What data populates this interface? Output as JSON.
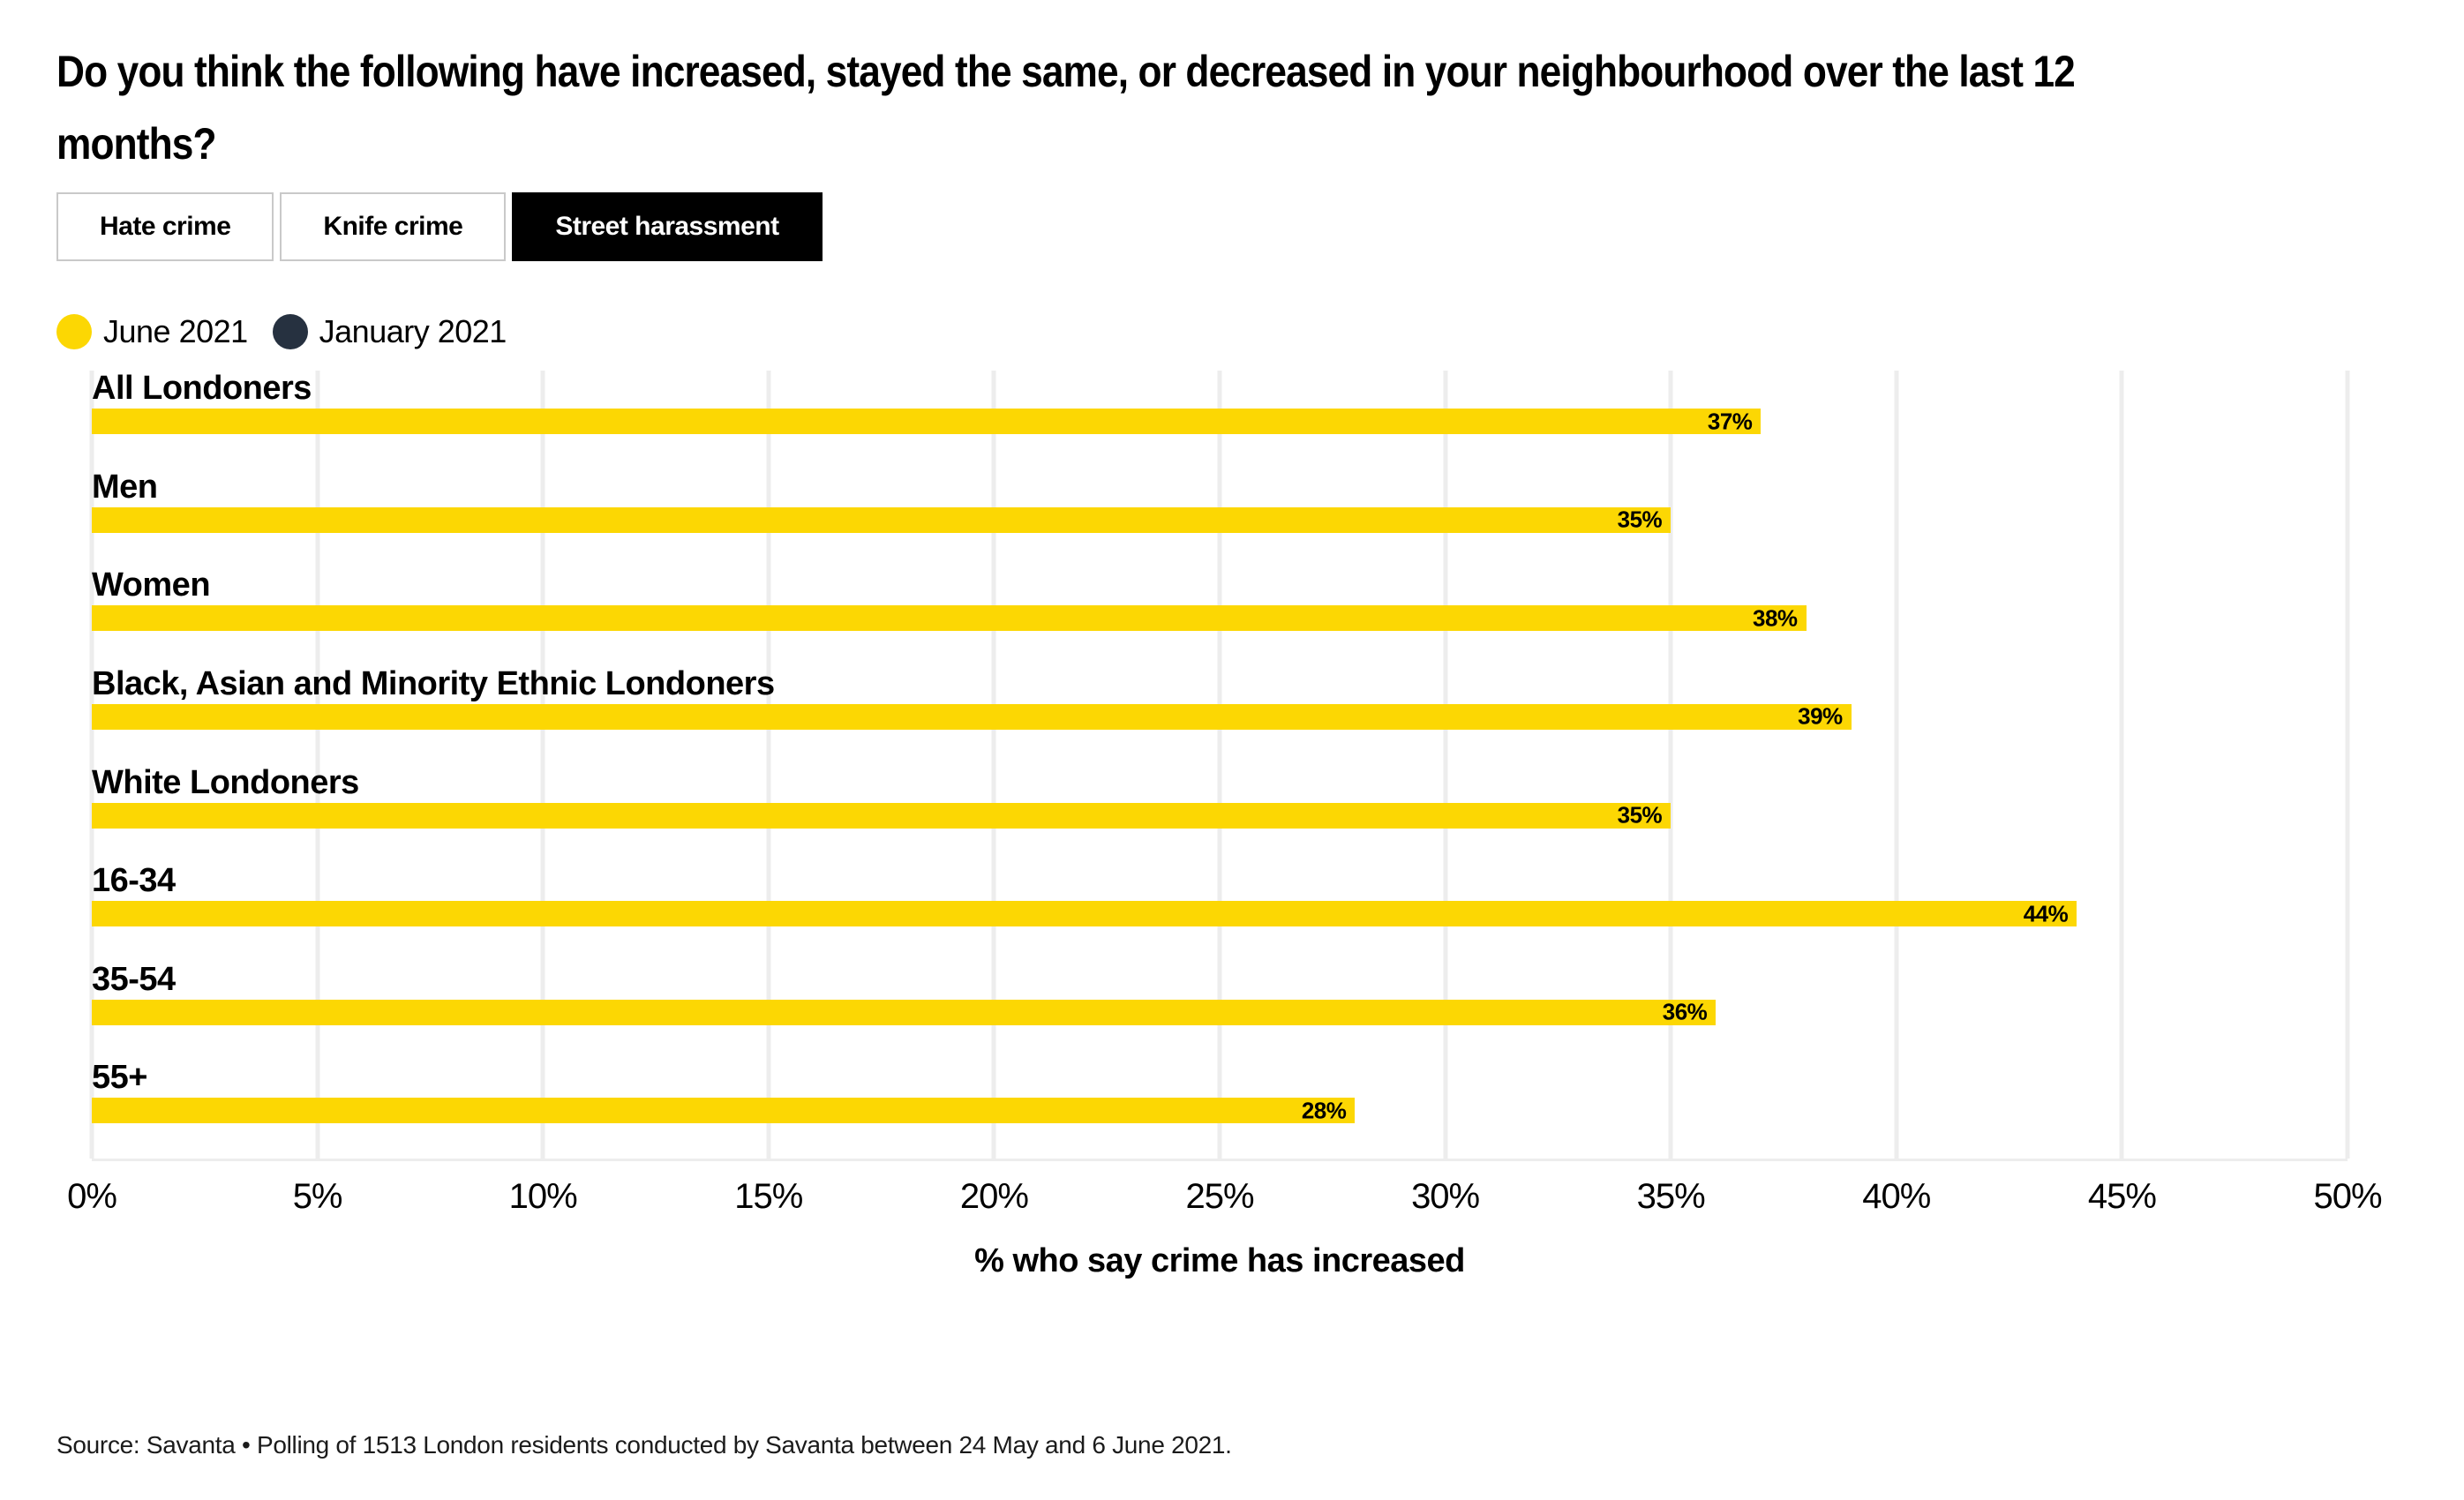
{
  "title": "Do you think the following have increased, stayed the same, or decreased in your neighbourhood over the last 12\nmonths?",
  "tabs": [
    {
      "label": "Hate crime",
      "active": false
    },
    {
      "label": "Knife crime",
      "active": false
    },
    {
      "label": "Street harassment",
      "active": true
    }
  ],
  "legend": {
    "items": [
      {
        "label": "June 2021",
        "color": "#FCD703"
      },
      {
        "label": "January 2021",
        "color": "#263140"
      }
    ]
  },
  "chart_data": {
    "type": "bar",
    "orientation": "horizontal",
    "categories": [
      "All Londoners",
      "Men",
      "Women",
      "Black, Asian and Minority Ethnic Londoners",
      "White Londoners",
      "16-34",
      "35-54",
      "55+"
    ],
    "series": [
      {
        "name": "June 2021",
        "color": "#FCD703",
        "values": [
          37,
          35,
          38,
          39,
          35,
          44,
          36,
          28
        ],
        "labels": [
          "37%",
          "35%",
          "38%",
          "39%",
          "35%",
          "44%",
          "36%",
          "28%"
        ]
      }
    ],
    "xlabel": "% who say crime has increased",
    "xlim": [
      0,
      50
    ],
    "x_ticks": [
      "0%",
      "5%",
      "10%",
      "15%",
      "20%",
      "25%",
      "30%",
      "35%",
      "40%",
      "45%",
      "50%"
    ],
    "grid": "vertical",
    "legend_position": "top-left"
  },
  "source": "Source: Savanta • Polling of 1513 London residents conducted by Savanta between 24 May and 6 June 2021."
}
